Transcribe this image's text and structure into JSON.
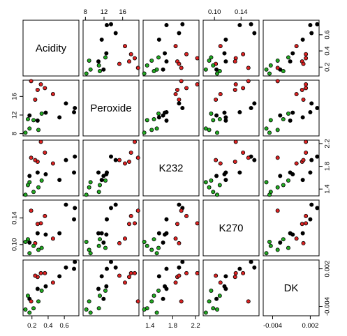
{
  "chart_data": {
    "type": "scatter",
    "subtype": "scatterplot-matrix",
    "variables": [
      "Acidity",
      "Peroxide",
      "K232",
      "K270",
      "DK"
    ],
    "ranges": {
      "Acidity": [
        0.09,
        0.78
      ],
      "Peroxide": [
        7.5,
        19.5
      ],
      "K232": [
        1.28,
        2.26
      ],
      "K270": [
        0.083,
        0.167
      ],
      "DK": [
        -0.0055,
        0.0034
      ]
    },
    "ticks": {
      "Acidity": [
        0.2,
        0.4,
        0.6
      ],
      "Peroxide": [
        8,
        12,
        16
      ],
      "K232": [
        1.4,
        1.8,
        2.2
      ],
      "K270": [
        0.1,
        0.14
      ],
      "DK": [
        -0.004,
        0.002
      ]
    },
    "tick_labels": {
      "Acidity": [
        "0.2",
        "0.4",
        "0.6"
      ],
      "Peroxide": [
        "8",
        "12",
        "16"
      ],
      "K232": [
        "1.4",
        "1.8",
        "2.2"
      ],
      "K270": [
        "0.10",
        "0.14"
      ],
      "DK": [
        "-0.004",
        "0.002"
      ]
    },
    "axis_placement": {
      "Acidity": "bottom",
      "Peroxide": "top",
      "K232": "bottom",
      "K270": "top",
      "DK": "bottom",
      "Acidity_y": "right",
      "Peroxide_y": "left",
      "K232_y": "right",
      "K270_y": "left",
      "DK_y": "right"
    },
    "group_colors": {
      "black": "#000000",
      "red": "#dd2222",
      "green": "#22aa22"
    },
    "points": [
      {
        "group": "black",
        "Acidity": 0.73,
        "Peroxide": 13.5,
        "K232": 1.97,
        "K270": 0.155,
        "DK": 0.0031
      },
      {
        "group": "black",
        "Acidity": 0.72,
        "Peroxide": 12.6,
        "K232": 1.69,
        "K270": 0.138,
        "DK": 0.002
      },
      {
        "group": "black",
        "Acidity": 0.62,
        "Peroxide": 14.5,
        "K232": 1.91,
        "K270": 0.16,
        "DK": 0.0022
      },
      {
        "group": "black",
        "Acidity": 0.54,
        "Peroxide": 11.5,
        "K232": 1.56,
        "K270": 0.117,
        "DK": 0.0008
      },
      {
        "group": "black",
        "Acidity": 0.37,
        "Peroxide": 12.5,
        "K232": 1.66,
        "K270": 0.115,
        "DK": -0.0008
      },
      {
        "group": "black",
        "Acidity": 0.27,
        "Peroxide": 10.8,
        "K232": 1.69,
        "K270": 0.117,
        "DK": -0.0012
      },
      {
        "group": "black",
        "Acidity": 0.17,
        "Peroxide": 11.9,
        "K232": 1.63,
        "K270": 0.103,
        "DK": -0.0028
      },
      {
        "group": "red",
        "Acidity": 0.46,
        "Peroxide": 16.5,
        "K232": 1.85,
        "K270": 0.109,
        "DK": -0.0002
      },
      {
        "group": "red",
        "Acidity": 0.36,
        "Peroxide": 17.8,
        "K232": 2.04,
        "K270": 0.143,
        "DK": 0.0013
      },
      {
        "group": "red",
        "Acidity": 0.31,
        "Peroxide": 18.6,
        "K232": 2.23,
        "K270": 0.132,
        "DK": 0.0013
      },
      {
        "group": "red",
        "Acidity": 0.27,
        "Peroxide": 17.4,
        "K232": 1.88,
        "K270": 0.131,
        "DK": 0.0007
      },
      {
        "group": "red",
        "Acidity": 0.24,
        "Peroxide": 15.3,
        "K232": 1.91,
        "K270": 0.102,
        "DK": 0.0009
      },
      {
        "group": "red",
        "Acidity": 0.19,
        "Peroxide": 19.3,
        "K232": 1.95,
        "K270": 0.151,
        "DK": -0.0032
      },
      {
        "group": "green",
        "Acidity": 0.32,
        "Peroxide": 12.3,
        "K232": 1.55,
        "K270": 0.095,
        "DK": -0.0015
      },
      {
        "group": "green",
        "Acidity": 0.28,
        "Peroxide": 8.8,
        "K232": 1.43,
        "K270": 0.092,
        "DK": -0.0032
      },
      {
        "group": "green",
        "Acidity": 0.22,
        "Peroxide": 10.9,
        "K232": 1.35,
        "K270": 0.098,
        "DK": -0.0043
      },
      {
        "group": "green",
        "Acidity": 0.17,
        "Peroxide": 9.1,
        "K232": 1.52,
        "K270": 0.087,
        "DK": -0.005
      },
      {
        "group": "green",
        "Acidity": 0.15,
        "Peroxide": 11.1,
        "K232": 1.47,
        "K270": 0.108,
        "DK": -0.0023
      },
      {
        "group": "green",
        "Acidity": 0.12,
        "Peroxide": 8.2,
        "K232": 1.3,
        "K270": 0.104,
        "DK": -0.0045
      }
    ]
  }
}
